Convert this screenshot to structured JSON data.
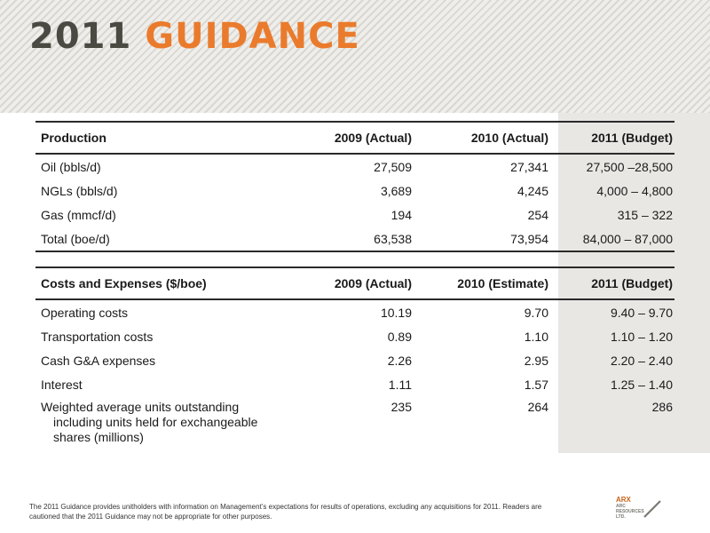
{
  "title": {
    "year": "2011",
    "word": "GUIDANCE"
  },
  "production": {
    "headers": [
      "Production",
      "2009 (Actual)",
      "2010 (Actual)",
      "2011 (Budget)"
    ],
    "rows": [
      [
        "Oil (bbls/d)",
        "27,509",
        "27,341",
        "27,500 –28,500"
      ],
      [
        "NGLs (bbls/d)",
        "3,689",
        "4,245",
        "4,000 – 4,800"
      ],
      [
        "Gas (mmcf/d)",
        "194",
        "254",
        "315 – 322"
      ],
      [
        "Total (boe/d)",
        "63,538",
        "73,954",
        "84,000 – 87,000"
      ]
    ]
  },
  "costs": {
    "headers": [
      "Costs and Expenses ($/boe)",
      "2009 (Actual)",
      "2010 (Estimate)",
      "2011 (Budget)"
    ],
    "rows": [
      [
        "Operating costs",
        "10.19",
        "9.70",
        "9.40 – 9.70"
      ],
      [
        "Transportation costs",
        "0.89",
        "1.10",
        "1.10 – 1.20"
      ],
      [
        "Cash G&A expenses",
        "2.26",
        "2.95",
        "2.20 – 2.40"
      ],
      [
        "Interest",
        "1.11",
        "1.57",
        "1.25 – 1.40"
      ]
    ],
    "weighted": {
      "line1": "Weighted average units  outstanding",
      "line2": "including units held for exchangeable",
      "line3": "shares (millions)",
      "v2009": "235",
      "v2010": "264",
      "v2011": "286"
    }
  },
  "footnote": "The 2011 Guidance provides unitholders with information on Management’s expectations for results of operations, excluding any acquisitions for 2011. Readers are cautioned that the 2011 Guidance may not be appropriate for other purposes.",
  "logo": {
    "name": "ARX",
    "sub": "ARC RESOURCES LTD."
  },
  "colors": {
    "accent": "#ea7b2c",
    "title_dark": "#4a4a42",
    "budget_shade": "#e8e7e4"
  }
}
